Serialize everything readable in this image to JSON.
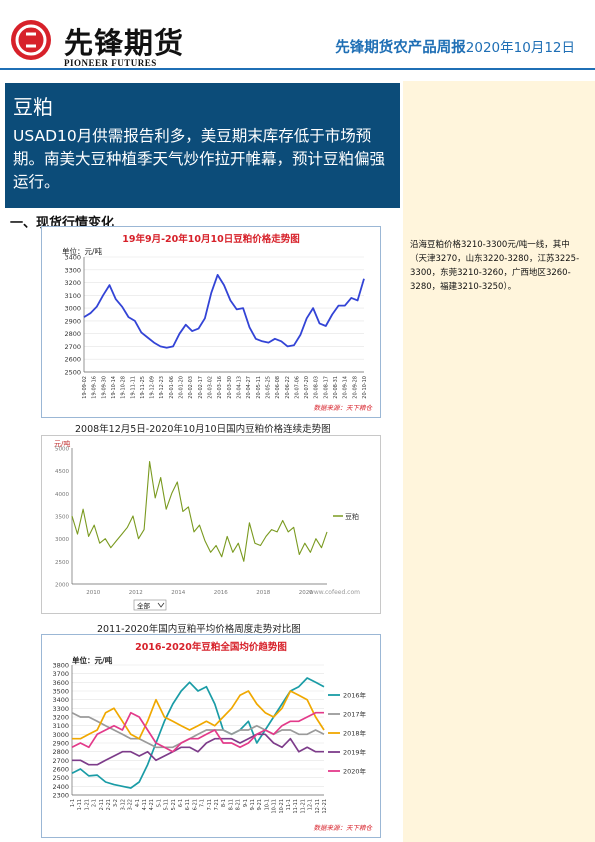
{
  "header": {
    "logo_cn": "先锋期货",
    "logo_en": "PIONEER FUTURES",
    "report_title": "先锋期货农产品周报",
    "report_date": "2020年10月12日"
  },
  "hero": {
    "title": "豆粕",
    "summary": "USAD10月供需报告利多，美豆期末库存低于市场预期。南美大豆种植季天气炒作拉开帷幕，预计豆粕偏强运行。"
  },
  "section1": {
    "heading": "一、现货行情变化",
    "spot_text": "沿海豆粕价格3210-3300元/吨一线，其中（天津3270，山东3220-3280，江苏3225-3300，东莞3210-3260，广西地区3260-3280，福建3210-3250）。"
  },
  "chart_data": [
    {
      "type": "line",
      "title": "19年9月-20年10月10日豆粕价格走势图",
      "ylabel": "单位：元/吨",
      "ylim": [
        2500,
        3400
      ],
      "yticks": [
        2500,
        2600,
        2700,
        2800,
        2900,
        3000,
        3100,
        3200,
        3300,
        3400
      ],
      "xticks": [
        "19-09-02",
        "19-09-16",
        "19-09-30",
        "19-10-14",
        "19-10-28",
        "19-11-11",
        "19-11-25",
        "19-12-09",
        "19-12-23",
        "20-01-06",
        "20-01-20",
        "20-02-03",
        "20-02-17",
        "20-03-02",
        "20-03-16",
        "20-03-30",
        "20-04-13",
        "20-04-27",
        "20-05-11",
        "20-05-25",
        "20-06-08",
        "20-06-22",
        "20-07-06",
        "20-07-20",
        "20-08-03",
        "20-08-17",
        "20-08-31",
        "20-09-14",
        "20-09-28",
        "20-10-10"
      ],
      "series": [
        {
          "values": [
            2930,
            2960,
            3010,
            3100,
            3180,
            3070,
            3010,
            2930,
            2900,
            2810,
            2770,
            2730,
            2700,
            2690,
            2700,
            2800,
            2870,
            2820,
            2840,
            2920,
            3120,
            3260,
            3180,
            3060,
            2990,
            3000,
            2850,
            2760,
            2740,
            2730,
            2760,
            2740,
            2700,
            2710,
            2790,
            2920,
            3000,
            2880,
            2860,
            2950,
            3020,
            3020,
            3080,
            3060,
            3230
          ]
        }
      ],
      "source": "数据来源：天下粮仓"
    },
    {
      "type": "line",
      "title": "2008年12月5日-2020年10月10日国内豆粕价格连续走势图",
      "ylabel": "元/吨",
      "ylim": [
        2000,
        5000
      ],
      "yticks": [
        2000,
        2500,
        3000,
        3500,
        4000,
        4500,
        5000
      ],
      "xticks": [
        "2010",
        "2012",
        "2014",
        "2016",
        "2018",
        "2020"
      ],
      "series": [
        {
          "name": "豆粕",
          "values": [
            3500,
            3100,
            3650,
            3050,
            3300,
            2900,
            3000,
            2800,
            2950,
            3100,
            3250,
            3500,
            3000,
            3200,
            4700,
            3900,
            4350,
            3650,
            4000,
            4250,
            3600,
            3700,
            3150,
            3300,
            2950,
            2700,
            2850,
            2600,
            3050,
            2700,
            2900,
            2500,
            3350,
            2900,
            2850,
            3050,
            3200,
            3150,
            3400,
            3150,
            3250,
            2650,
            2900,
            2700,
            3000,
            2800,
            3150
          ]
        }
      ],
      "select_value": "全部",
      "source": "www.cofeed.com"
    },
    {
      "type": "line",
      "title": "2016-2020年豆粕全国均价趋势图",
      "caption": "2011-2020年国内豆粕平均价格周度走势对比图",
      "ylabel": "单位：元/吨",
      "ylim": [
        2300,
        3800
      ],
      "yticks": [
        2300,
        2400,
        2500,
        2600,
        2700,
        2800,
        2900,
        3000,
        3100,
        3200,
        3300,
        3400,
        3500,
        3600,
        3700,
        3800
      ],
      "xticks": [
        "1-1",
        "1-11",
        "1-21",
        "2-1",
        "2-11",
        "2-21",
        "3-2",
        "3-12",
        "3-22",
        "4-1",
        "4-11",
        "4-21",
        "5-1",
        "5-11",
        "5-21",
        "6-1",
        "6-11",
        "6-21",
        "7-1",
        "7-11",
        "7-21",
        "8-1",
        "8-11",
        "8-21",
        "9-1",
        "9-11",
        "9-21",
        "10-1",
        "10-11",
        "10-21",
        "11-1",
        "11-11",
        "11-21",
        "12-1",
        "12-11",
        "12-21"
      ],
      "series": [
        {
          "name": "2016年",
          "color": "#1a9ca6",
          "values": [
            2550,
            2600,
            2520,
            2530,
            2450,
            2420,
            2400,
            2380,
            2450,
            2650,
            2900,
            3150,
            3350,
            3500,
            3600,
            3500,
            3550,
            3350,
            3050,
            3000,
            3050,
            3150,
            2900,
            3050,
            3200,
            3350,
            3500,
            3550,
            3650,
            3600,
            3550
          ]
        },
        {
          "name": "2017年",
          "color": "#9a9a9a",
          "values": [
            3250,
            3200,
            3200,
            3150,
            3100,
            3050,
            3000,
            2950,
            2950,
            2900,
            2850,
            2850,
            2850,
            2900,
            2950,
            3000,
            3050,
            3050,
            3050,
            3000,
            3050,
            3050,
            3100,
            3050,
            3000,
            3050,
            3050,
            3000,
            3000,
            3050,
            3000
          ]
        },
        {
          "name": "2018年",
          "color": "#f0a800",
          "values": [
            2950,
            2950,
            3000,
            3050,
            3250,
            3300,
            3150,
            3000,
            2950,
            3150,
            3400,
            3200,
            3150,
            3100,
            3050,
            3100,
            3150,
            3100,
            3200,
            3300,
            3450,
            3500,
            3350,
            3250,
            3200,
            3300,
            3500,
            3450,
            3400,
            3200,
            3050
          ]
        },
        {
          "name": "2019年",
          "color": "#7d3c8a",
          "values": [
            2700,
            2700,
            2650,
            2650,
            2700,
            2750,
            2800,
            2800,
            2750,
            2800,
            2700,
            2750,
            2800,
            2850,
            2850,
            2800,
            2900,
            2950,
            2950,
            2950,
            2900,
            2950,
            3000,
            3000,
            2900,
            2850,
            2950,
            2800,
            2850,
            2800,
            2800
          ]
        },
        {
          "name": "2020年",
          "color": "#e33a8a",
          "values": [
            2850,
            2900,
            2850,
            3000,
            3050,
            3100,
            3050,
            3250,
            3200,
            3050,
            2900,
            2850,
            2800,
            2900,
            2950,
            2950,
            3000,
            3050,
            2900,
            2900,
            2850,
            2900,
            3000,
            3050,
            3000,
            3100,
            3150,
            3150,
            3200,
            3250,
            3250
          ]
        }
      ],
      "source": "数据来源：天下粮仓"
    }
  ]
}
